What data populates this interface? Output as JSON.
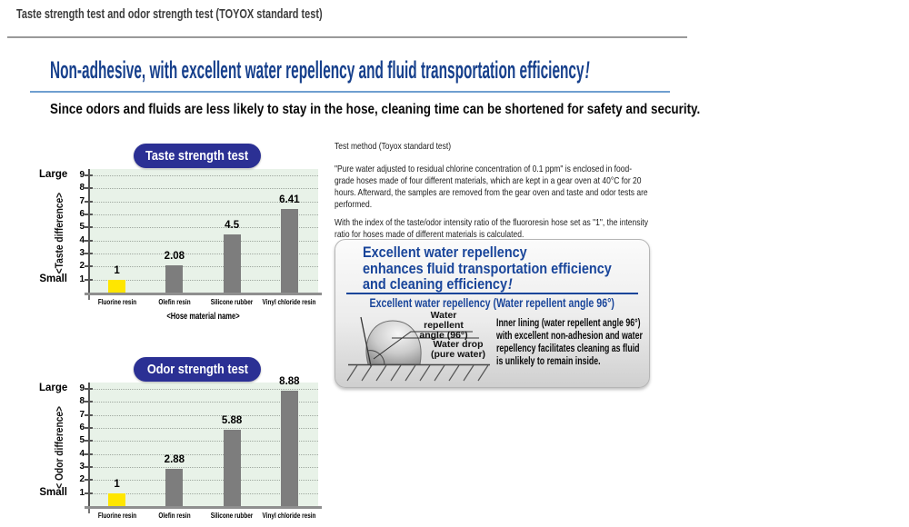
{
  "page": {
    "title": "Taste strength test and odor strength test (TOYOX standard test)",
    "headline_text": "Non-adhesive, with excellent water repellency and fluid transportation efficiency",
    "headline_bang": "!",
    "subheadline": "Since odors and fluids are less likely to stay in the hose, cleaning time can be shortened for safety and security."
  },
  "test_method": {
    "heading": "Test method (Toyox standard test)",
    "paragraph1": "\"Pure water adjusted to residual chlorine concentration of 0.1 ppm\" is enclosed in food-grade hoses made of four different materials, which are kept in a gear oven at 40°C for 20 hours. Afterward, the samples are removed from the gear oven and taste and odor tests are performed.",
    "paragraph2": "With the index of the taste/odor intensity ratio of the fluororesin hose set as \"1\", the intensity ratio for hoses made of different materials is calculated."
  },
  "info_box": {
    "heading_line1": "Excellent water repellency",
    "heading_line2": "enhances fluid transportation efficiency",
    "heading_line3": "and cleaning efficiency",
    "heading_bang": "!",
    "subheading": "Excellent water repellency (Water repellent angle 96°)",
    "diagram": {
      "angle_label_line1": "Water repellent",
      "angle_label_line2": "angle (96°)",
      "drop_label_line1": "Water drop",
      "drop_label_line2": "(pure water)"
    },
    "body": "Inner lining (water repellent angle 96°) with excellent non-adhesion and water repellency facilitates cleaning as fluid is unlikely to remain inside."
  },
  "colors": {
    "headline_blue": "#17408c",
    "underline_blue": "#6f9fd0",
    "badge_bg": "#2b3094",
    "bar_gray": "#7d7d7d",
    "bar_yellow": "#ffe600",
    "plot_bg": "#e8f2e8",
    "box_heading_blue": "#19459a"
  },
  "chart_data": [
    {
      "type": "bar",
      "title": "Taste strength test",
      "categories": [
        "Fluorine resin",
        "Olefin resin",
        "Silicone rubber",
        "Vinyl chloride resin"
      ],
      "values": [
        1,
        2.08,
        4.5,
        6.41
      ],
      "value_labels": [
        "1",
        "2.08",
        "4.5",
        "6.41"
      ],
      "bar_colors": [
        "#ffe600",
        "#7d7d7d",
        "#7d7d7d",
        "#7d7d7d"
      ],
      "ylabel": "<Taste difference>",
      "xlabel": "<Hose material name>",
      "axis_top_label": "Large",
      "axis_bottom_label": "Small",
      "y_ticks": [
        1,
        2,
        3,
        4,
        5,
        6,
        7,
        8,
        9
      ],
      "ylim": [
        0,
        9.5
      ],
      "grid": "dotted-horizontal",
      "plot_bg": "#e8f2e8"
    },
    {
      "type": "bar",
      "title": "Odor strength test",
      "categories": [
        "Fluorine resin",
        "Olefin resin",
        "Silicone rubber",
        "Vinyl chloride resin"
      ],
      "values": [
        1,
        2.88,
        5.88,
        8.88
      ],
      "value_labels": [
        "1",
        "2.88",
        "5.88",
        "8.88"
      ],
      "bar_colors": [
        "#ffe600",
        "#7d7d7d",
        "#7d7d7d",
        "#7d7d7d"
      ],
      "ylabel": "< Odor difference>",
      "xlabel": "",
      "axis_top_label": "Large",
      "axis_bottom_label": "Small",
      "y_ticks": [
        1,
        2,
        3,
        4,
        5,
        6,
        7,
        8,
        9
      ],
      "ylim": [
        0,
        9.5
      ],
      "grid": "dotted-horizontal",
      "plot_bg": "#e8f2e8"
    }
  ]
}
